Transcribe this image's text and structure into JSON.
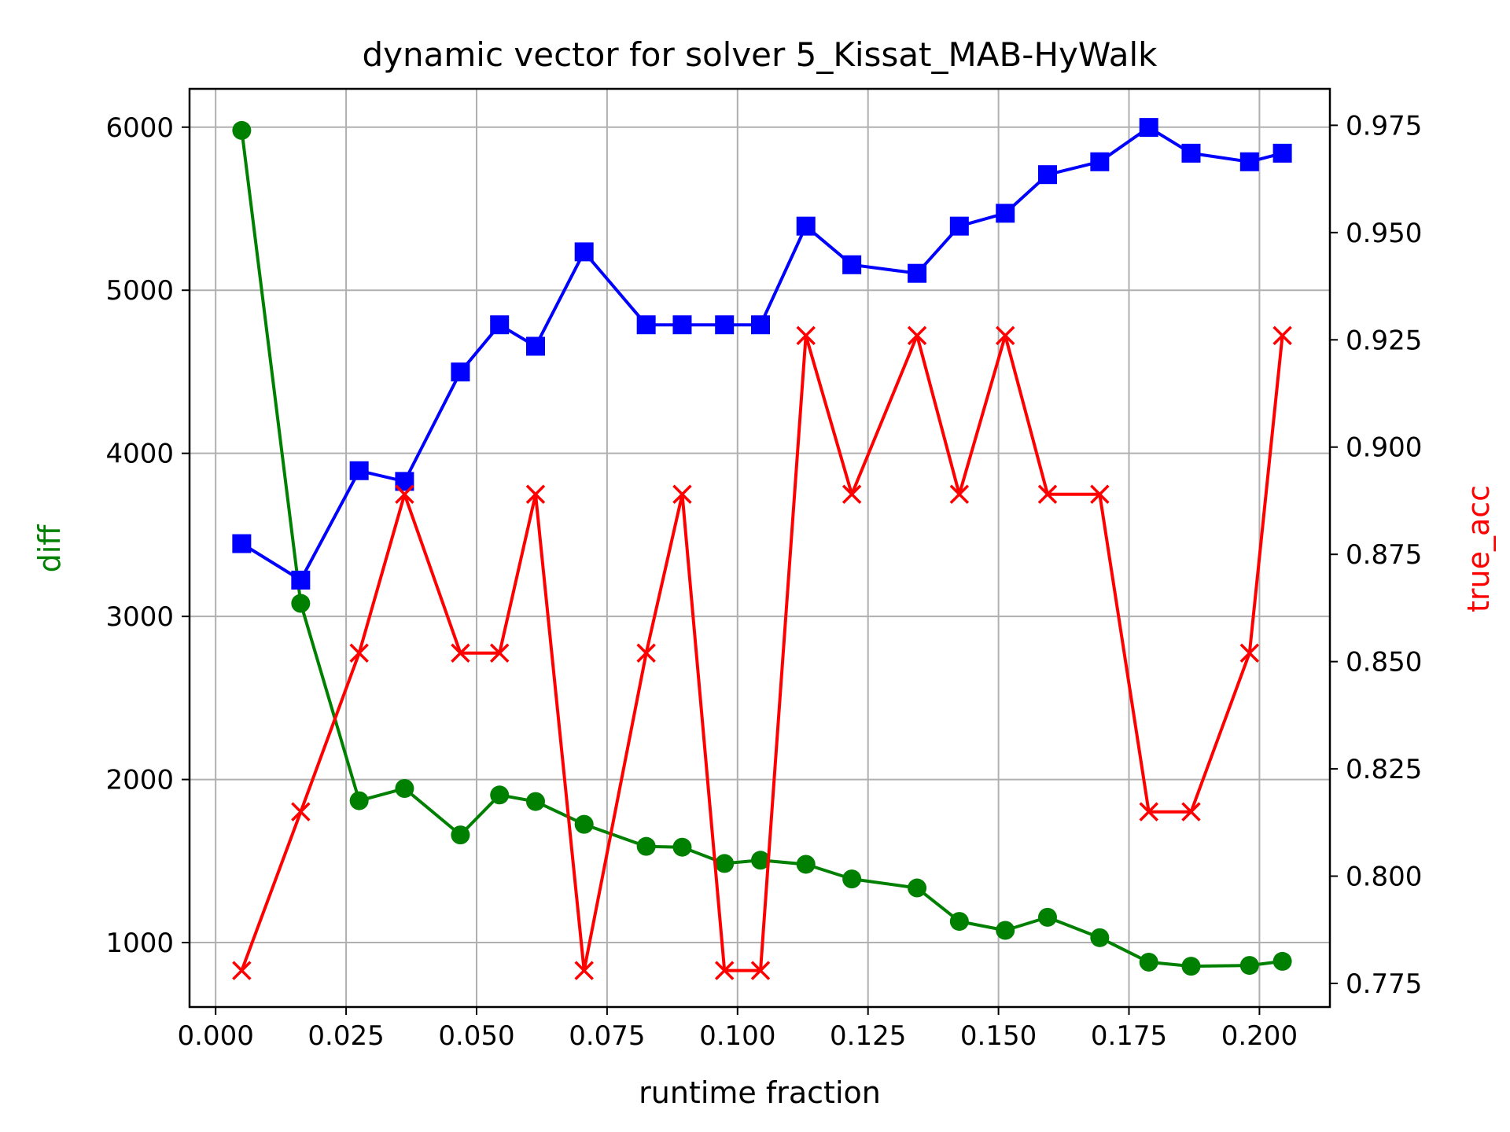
{
  "chart_data": {
    "type": "line",
    "title": "dynamic vector for solver 5_Kissat_MAB-HyWalk",
    "xlabel": "runtime fraction",
    "ylabel_left": "diff",
    "ylabel_right": "true_acc",
    "grid": true,
    "xlim": [
      -0.005,
      0.2135
    ],
    "ylim_left": [
      605,
      6235
    ],
    "ylim_right": [
      0.7695,
      0.9835
    ],
    "x_ticks": [
      0.0,
      0.025,
      0.05,
      0.075,
      0.1,
      0.125,
      0.15,
      0.175,
      0.2
    ],
    "x_tick_labels": [
      "0.000",
      "0.025",
      "0.050",
      "0.075",
      "0.100",
      "0.125",
      "0.150",
      "0.175",
      "0.200"
    ],
    "y_left_ticks": [
      1000,
      2000,
      3000,
      4000,
      5000,
      6000
    ],
    "y_left_tick_labels": [
      "1000",
      "2000",
      "3000",
      "4000",
      "5000",
      "6000"
    ],
    "y_right_ticks": [
      0.775,
      0.8,
      0.825,
      0.85,
      0.875,
      0.9,
      0.925,
      0.95,
      0.975
    ],
    "y_right_tick_labels": [
      "0.775",
      "0.800",
      "0.825",
      "0.850",
      "0.875",
      "0.900",
      "0.925",
      "0.950",
      "0.975"
    ],
    "x": [
      0.005,
      0.0163,
      0.0275,
      0.0362,
      0.0469,
      0.0544,
      0.0613,
      0.0706,
      0.0825,
      0.0894,
      0.0975,
      0.1044,
      0.1131,
      0.1219,
      0.1344,
      0.1425,
      0.1513,
      0.1594,
      0.1694,
      0.1788,
      0.1869,
      0.1981,
      0.2044
    ],
    "series": [
      {
        "name": "diff",
        "axis": "left",
        "color": "#008000",
        "marker": "circle",
        "values": [
          5980,
          3080,
          1870,
          1945,
          1660,
          1905,
          1865,
          1725,
          1590,
          1585,
          1485,
          1505,
          1480,
          1390,
          1335,
          1130,
          1075,
          1155,
          1030,
          880,
          855,
          860,
          885
        ]
      },
      {
        "name": "blue",
        "axis": "right",
        "color": "#0000ff",
        "marker": "square",
        "values": [
          0.8775,
          0.869,
          0.8945,
          0.892,
          0.9175,
          0.9285,
          0.9235,
          0.9455,
          0.9285,
          0.9285,
          0.9285,
          0.9285,
          0.9515,
          0.9425,
          0.9405,
          0.9515,
          0.9545,
          0.9635,
          0.9665,
          0.9745,
          0.9685,
          0.9665,
          0.9685
        ]
      },
      {
        "name": "true_acc",
        "axis": "right",
        "color": "#ff0000",
        "marker": "x",
        "values": [
          0.778,
          0.815,
          0.852,
          0.889,
          0.852,
          0.852,
          0.889,
          0.778,
          0.852,
          0.889,
          0.778,
          0.778,
          0.926,
          0.889,
          0.926,
          0.889,
          0.926,
          0.889,
          0.889,
          0.815,
          0.815,
          0.852,
          0.926
        ]
      }
    ]
  }
}
